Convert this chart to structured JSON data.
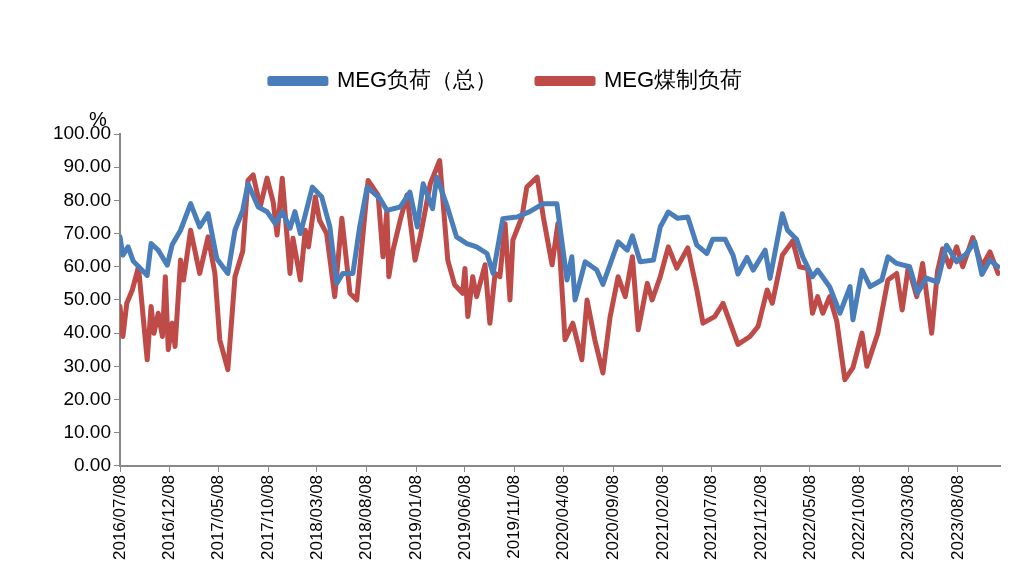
{
  "chart_data": {
    "type": "line",
    "ylabel": "%",
    "legend": "top",
    "grid": false,
    "marker": "none",
    "line_style": "solid",
    "xlim": [
      "2016-07-08",
      "2023-12-16"
    ],
    "xticks": [
      {
        "value": "2016-07-08",
        "label": "2016/07/08"
      },
      {
        "value": "2016-12-08",
        "label": "2016/12/08"
      },
      {
        "value": "2017-05-08",
        "label": "2017/05/08"
      },
      {
        "value": "2017-10-08",
        "label": "2017/10/08"
      },
      {
        "value": "2018-03-08",
        "label": "2018/03/08"
      },
      {
        "value": "2018-08-08",
        "label": "2018/08/08"
      },
      {
        "value": "2019-01-08",
        "label": "2019/01/08"
      },
      {
        "value": "2019-06-08",
        "label": "2019/06/08"
      },
      {
        "value": "2019-11-08",
        "label": "2019/11/08"
      },
      {
        "value": "2020-04-08",
        "label": "2020/04/08"
      },
      {
        "value": "2020-09-08",
        "label": "2020/09/08"
      },
      {
        "value": "2021-02-08",
        "label": "2021/02/08"
      },
      {
        "value": "2021-07-08",
        "label": "2021/07/08"
      },
      {
        "value": "2021-12-08",
        "label": "2021/12/08"
      },
      {
        "value": "2022-05-08",
        "label": "2022/05/08"
      },
      {
        "value": "2022-10-08",
        "label": "2022/10/08"
      },
      {
        "value": "2023-03-08",
        "label": "2023/03/08"
      },
      {
        "value": "2023-08-08",
        "label": "2023/08/08"
      }
    ],
    "ylim": [
      0,
      100
    ],
    "yticks": [
      {
        "value": 0,
        "label": "0.00"
      },
      {
        "value": 10,
        "label": "10.00"
      },
      {
        "value": 20,
        "label": "20.00"
      },
      {
        "value": 30,
        "label": "30.00"
      },
      {
        "value": 40,
        "label": "40.00"
      },
      {
        "value": 50,
        "label": "50.00"
      },
      {
        "value": 60,
        "label": "60.00"
      },
      {
        "value": 70,
        "label": "70.00"
      },
      {
        "value": 80,
        "label": "80.00"
      },
      {
        "value": 90,
        "label": "90.00"
      },
      {
        "value": 100,
        "label": "100.00"
      }
    ],
    "series": [
      {
        "name": "MEG负荷（总）",
        "color": "#4a7ebb",
        "x": [
          "2016-07-08",
          "2016-07-17",
          "2016-08-02",
          "2016-08-18",
          "2016-09-30",
          "2016-10-12",
          "2016-11-03",
          "2016-12-01",
          "2016-12-16",
          "2017-01-11",
          "2017-02-11",
          "2017-03-11",
          "2017-04-06",
          "2017-05-03",
          "2017-06-06",
          "2017-06-28",
          "2017-07-22",
          "2017-08-07",
          "2017-09-08",
          "2017-10-05",
          "2017-10-30",
          "2017-11-21",
          "2017-12-15",
          "2017-12-30",
          "2018-01-16",
          "2018-02-22",
          "2018-03-23",
          "2018-04-17",
          "2018-05-08",
          "2018-05-27",
          "2018-06-27",
          "2018-07-18",
          "2018-08-10",
          "2018-09-19",
          "2018-10-10",
          "2018-11-20",
          "2018-12-20",
          "2019-01-12",
          "2019-01-30",
          "2019-02-28",
          "2019-03-13",
          "2019-04-13",
          "2019-05-13",
          "2019-06-14",
          "2019-07-14",
          "2019-08-15",
          "2019-09-03",
          "2019-10-03",
          "2019-11-16",
          "2019-12-25",
          "2020-02-05",
          "2020-03-18",
          "2020-04-18",
          "2020-05-03",
          "2020-05-13",
          "2020-06-13",
          "2020-07-19",
          "2020-08-07",
          "2020-09-23",
          "2020-10-21",
          "2020-11-06",
          "2020-11-30",
          "2021-01-10",
          "2021-01-31",
          "2021-02-25",
          "2021-03-26",
          "2021-04-26",
          "2021-05-24",
          "2021-06-24",
          "2021-07-12",
          "2021-08-19",
          "2021-09-13",
          "2021-09-28",
          "2021-10-26",
          "2021-11-14",
          "2021-12-21",
          "2022-01-05",
          "2022-02-12",
          "2022-02-28",
          "2022-03-28",
          "2022-04-16",
          "2022-05-16",
          "2022-06-01",
          "2022-07-08",
          "2022-08-09",
          "2022-09-09",
          "2022-09-18",
          "2022-10-16",
          "2022-11-10",
          "2022-12-16",
          "2023-01-04",
          "2023-01-31",
          "2023-03-12",
          "2023-04-05",
          "2023-05-03",
          "2023-06-06",
          "2023-07-04",
          "2023-08-04",
          "2023-09-04",
          "2023-09-29",
          "2023-10-21",
          "2023-11-15",
          "2023-12-10"
        ],
        "values": [
          69,
          63.5,
          66,
          61.7,
          57.4,
          67,
          65,
          60.5,
          66.6,
          71,
          79,
          72,
          76,
          62.4,
          58,
          71,
          77,
          85,
          78,
          76.6,
          73,
          76.6,
          71.6,
          76.6,
          70,
          84,
          81,
          72,
          55,
          58,
          58,
          72,
          84,
          80.5,
          77,
          78,
          82.5,
          72,
          85,
          77.5,
          87,
          78.6,
          69,
          67,
          66,
          64,
          58,
          74.5,
          75,
          76.6,
          79,
          79,
          56,
          63,
          50,
          61.5,
          59,
          54.7,
          67.5,
          65,
          69.3,
          61.5,
          62,
          72,
          76.5,
          74.6,
          75,
          66.5,
          64,
          68.3,
          68.3,
          63.4,
          57.8,
          62.8,
          59,
          65,
          56.5,
          76,
          71,
          68.3,
          63,
          57,
          59,
          54,
          46,
          54,
          44,
          59,
          54,
          56,
          63,
          61,
          60,
          52,
          56.6,
          55.4,
          66.5,
          61.5,
          64,
          67.6,
          57.7,
          62,
          60
        ]
      },
      {
        "name": "MEG煤制负荷",
        "color": "#be4b48",
        "x": [
          "2016-07-08",
          "2016-07-17",
          "2016-07-29",
          "2016-08-15",
          "2016-09-03",
          "2016-09-30",
          "2016-10-12",
          "2016-10-21",
          "2016-11-03",
          "2016-11-16",
          "2016-11-25",
          "2016-12-04",
          "2016-12-16",
          "2016-12-25",
          "2017-01-11",
          "2017-01-20",
          "2017-02-11",
          "2017-03-11",
          "2017-04-06",
          "2017-04-27",
          "2017-05-12",
          "2017-06-06",
          "2017-06-28",
          "2017-07-22",
          "2017-08-07",
          "2017-08-23",
          "2017-09-14",
          "2017-10-05",
          "2017-10-24",
          "2017-11-05",
          "2017-11-21",
          "2017-12-15",
          "2017-12-24",
          "2018-01-16",
          "2018-01-31",
          "2018-02-10",
          "2018-03-03",
          "2018-03-16",
          "2018-04-07",
          "2018-05-02",
          "2018-05-24",
          "2018-06-18",
          "2018-07-09",
          "2018-08-13",
          "2018-09-13",
          "2018-09-28",
          "2018-10-10",
          "2018-10-16",
          "2018-10-29",
          "2018-11-20",
          "2018-12-11",
          "2019-01-05",
          "2019-01-21",
          "2019-02-21",
          "2019-03-22",
          "2019-04-16",
          "2019-05-07",
          "2019-06-01",
          "2019-06-08",
          "2019-06-17",
          "2019-07-02",
          "2019-07-14",
          "2019-08-09",
          "2019-08-24",
          "2019-09-09",
          "2019-09-24",
          "2019-10-10",
          "2019-10-25",
          "2019-11-03",
          "2019-12-01",
          "2019-12-16",
          "2020-01-17",
          "2020-02-05",
          "2020-03-03",
          "2020-03-21",
          "2020-04-06",
          "2020-04-12",
          "2020-05-06",
          "2020-06-03",
          "2020-06-19",
          "2020-07-13",
          "2020-08-07",
          "2020-08-29",
          "2020-09-23",
          "2020-10-15",
          "2020-11-06",
          "2020-11-24",
          "2020-12-22",
          "2021-01-06",
          "2021-01-31",
          "2021-02-25",
          "2021-03-23",
          "2021-04-26",
          "2021-05-24",
          "2021-06-12",
          "2021-07-18",
          "2021-08-13",
          "2021-09-28",
          "2021-11-04",
          "2021-11-29",
          "2021-12-27",
          "2022-01-12",
          "2022-02-12",
          "2022-03-16",
          "2022-04-06",
          "2022-05-01",
          "2022-05-16",
          "2022-06-01",
          "2022-06-17",
          "2022-07-08",
          "2022-07-30",
          "2022-08-24",
          "2022-09-18",
          "2022-10-16",
          "2022-10-31",
          "2022-12-04",
          "2023-01-04",
          "2023-01-31",
          "2023-02-17",
          "2023-03-08",
          "2023-04-03",
          "2023-04-21",
          "2023-05-19",
          "2023-06-06",
          "2023-06-22",
          "2023-07-13",
          "2023-08-04",
          "2023-08-23",
          "2023-09-23",
          "2023-10-21",
          "2023-11-15",
          "2023-12-10"
        ],
        "values": [
          48,
          39,
          49,
          53,
          60,
          32,
          48,
          40,
          46,
          39,
          57,
          35,
          43,
          36,
          62,
          56,
          71,
          58,
          69,
          58,
          38,
          29,
          57,
          64.7,
          86,
          87.7,
          78,
          86.7,
          79.5,
          69.6,
          86.7,
          58,
          68.6,
          56,
          71,
          66,
          81,
          74,
          70,
          51,
          74.6,
          52,
          50,
          86,
          81.6,
          63,
          77,
          57,
          65,
          74,
          81.6,
          62,
          69,
          85,
          92,
          62,
          54.6,
          52,
          59.5,
          45,
          57,
          51,
          60.6,
          43,
          58,
          57,
          73,
          50,
          68,
          75,
          84,
          87,
          75,
          60.6,
          73,
          48,
          38,
          43,
          32,
          50,
          38,
          28,
          44.8,
          57,
          51,
          63,
          41,
          55,
          50,
          57,
          66,
          59.6,
          65.7,
          53,
          43,
          45,
          49,
          36.6,
          39,
          42,
          53,
          49,
          63.5,
          67.8,
          60,
          59.5,
          46,
          51,
          46,
          51,
          43.6,
          26,
          29.6,
          40,
          30,
          40,
          56,
          58,
          47,
          60,
          51,
          61,
          40,
          58.6,
          65.4,
          60,
          66,
          60,
          68.8,
          60,
          64.5,
          58
        ]
      }
    ]
  }
}
